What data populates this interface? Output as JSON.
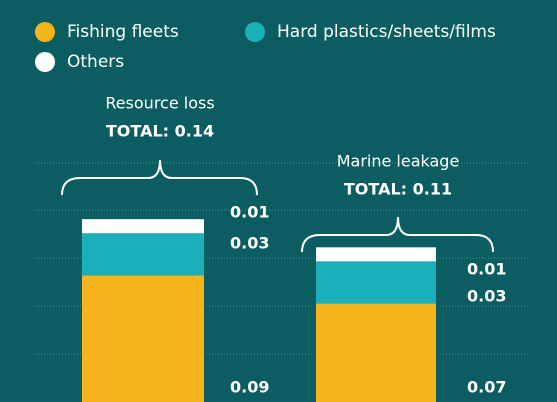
{
  "chart_data": {
    "type": "stacked_bar",
    "categories": [
      "Resource loss",
      "Marine leakage"
    ],
    "series": [
      {
        "name": "Fishing fleets",
        "color": "#f8b41c",
        "values": [
          0.09,
          0.07
        ]
      },
      {
        "name": "Hard plastics/sheets/films",
        "color": "#1bb0b9",
        "values": [
          0.03,
          0.03
        ]
      },
      {
        "name": "Others",
        "color": "#ffffff",
        "values": [
          0.01,
          0.01
        ]
      }
    ],
    "totals": [
      "TOTAL: 0.14",
      "TOTAL: 0.11"
    ],
    "ylim": [
      0,
      0.16
    ]
  }
}
